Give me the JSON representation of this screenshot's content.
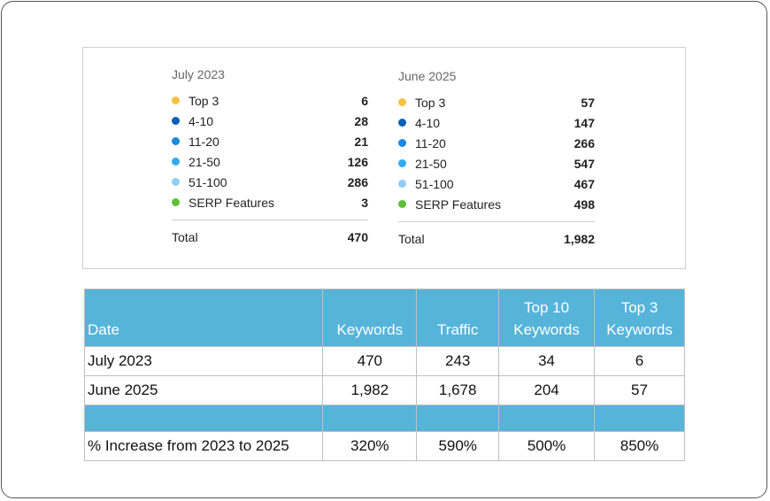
{
  "ranking_card": {
    "columns": [
      {
        "title": "July 2023",
        "rows": [
          {
            "label": "Top 3",
            "value": "6",
            "color": "#f7c244"
          },
          {
            "label": "4-10",
            "value": "28",
            "color": "#0b5fb8"
          },
          {
            "label": "11-20",
            "value": "21",
            "color": "#1a8ae0"
          },
          {
            "label": "21-50",
            "value": "126",
            "color": "#35aaf0"
          },
          {
            "label": "51-100",
            "value": "286",
            "color": "#8fcdf7"
          },
          {
            "label": "SERP Features",
            "value": "3",
            "color": "#5fbf3a"
          }
        ],
        "total_label": "Total",
        "total_value": "470"
      },
      {
        "title": "June 2025",
        "rows": [
          {
            "label": "Top 3",
            "value": "57",
            "color": "#f7c244"
          },
          {
            "label": "4-10",
            "value": "147",
            "color": "#0b5fb8"
          },
          {
            "label": "11-20",
            "value": "266",
            "color": "#1a8ae0"
          },
          {
            "label": "21-50",
            "value": "547",
            "color": "#35aaf0"
          },
          {
            "label": "51-100",
            "value": "467",
            "color": "#8fcdf7"
          },
          {
            "label": "SERP Features",
            "value": "498",
            "color": "#5fbf3a"
          }
        ],
        "total_label": "Total",
        "total_value": "1,982"
      }
    ]
  },
  "table": {
    "header_color": "#56b4d9",
    "headers": [
      "Date",
      "Keywords",
      "Traffic",
      "Top 10 Keywords",
      "Top 3 Keywords"
    ],
    "rows": [
      [
        "July 2023",
        "470",
        "243",
        "34",
        "6"
      ],
      [
        "June 2025",
        "1,982",
        "1,678",
        "204",
        "57"
      ]
    ],
    "summary_row": [
      "% Increase from 2023 to 2025",
      "320%",
      "590%",
      "500%",
      "850%"
    ]
  }
}
